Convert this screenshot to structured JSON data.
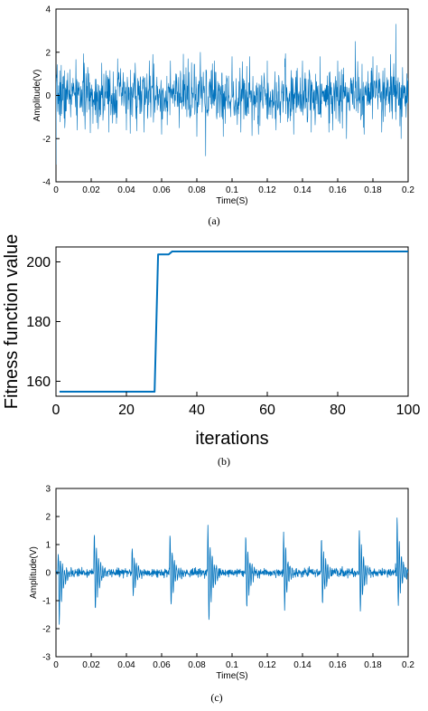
{
  "colors": {
    "line": "#0072bd",
    "axis": "#000000",
    "background": "#ffffff"
  },
  "chart_data": [
    {
      "panel": "a",
      "caption": "(a)",
      "type": "line",
      "xlabel": "Time(S)",
      "ylabel": "Amplitude(V)",
      "xlim": [
        0,
        0.2
      ],
      "ylim": [
        -4,
        4
      ],
      "xticks": [
        0,
        0.02,
        0.04,
        0.06,
        0.08,
        0.1,
        0.12,
        0.14,
        0.16,
        0.18,
        0.2
      ],
      "yticks": [
        -4,
        -2,
        0,
        2,
        4
      ],
      "grid": false,
      "signal": "dense broadband noise, approx. 2000 samples",
      "series": [
        {
          "x": [
            0,
            0.003,
            0.005,
            0.008,
            0.012,
            0.016,
            0.021,
            0.026,
            0.03,
            0.035,
            0.04,
            0.045,
            0.05,
            0.055,
            0.06,
            0.065,
            0.07,
            0.075,
            0.08,
            0.082,
            0.085,
            0.09,
            0.095,
            0.1,
            0.105,
            0.11,
            0.115,
            0.12,
            0.125,
            0.13,
            0.135,
            0.14,
            0.145,
            0.15,
            0.155,
            0.16,
            0.165,
            0.17,
            0.175,
            0.18,
            0.185,
            0.19,
            0.193,
            0.196,
            0.2
          ],
          "y": [
            -3.2,
            1.4,
            -1.5,
            1.2,
            -1.6,
            1.5,
            -1.3,
            1.5,
            -1.7,
            1.7,
            -1.6,
            1.5,
            -1.7,
            1.9,
            -1.8,
            1.6,
            -1.5,
            1.7,
            -1.9,
            2.0,
            -2.8,
            1.6,
            -1.9,
            1.8,
            -1.7,
            1.8,
            -1.8,
            1.6,
            -1.6,
            1.7,
            -1.8,
            1.6,
            -1.7,
            1.8,
            -1.7,
            1.6,
            -2.0,
            2.5,
            -1.8,
            1.8,
            -1.7,
            1.9,
            3.3,
            -2.0,
            0.8
          ]
        }
      ]
    },
    {
      "panel": "b",
      "caption": "(b)",
      "type": "line",
      "xlabel": "iterations",
      "ylabel": "Fitness function value",
      "xlim": [
        0,
        100
      ],
      "ylim": [
        155,
        205
      ],
      "xticks": [
        0,
        20,
        40,
        60,
        80,
        100
      ],
      "yticks": [
        160,
        180,
        200
      ],
      "grid": false,
      "series": [
        {
          "x": [
            1,
            28,
            29,
            32,
            33,
            100
          ],
          "y": [
            156.5,
            156.5,
            202.5,
            202.5,
            203.5,
            203.5
          ]
        }
      ]
    },
    {
      "panel": "c",
      "caption": "(c)",
      "type": "line",
      "xlabel": "Time(S)",
      "ylabel": "Amplitude(V)",
      "xlim": [
        0,
        0.2
      ],
      "ylim": [
        -3,
        3
      ],
      "xticks": [
        0,
        0.02,
        0.04,
        0.06,
        0.08,
        0.1,
        0.12,
        0.14,
        0.16,
        0.18,
        0.2
      ],
      "yticks": [
        -3,
        -2,
        -1,
        0,
        1,
        2,
        3
      ],
      "grid": false,
      "signal": "periodic impulses decaying into noise, period about 0.0215 s",
      "impulses": [
        {
          "t": 0.001,
          "peak": 0.8,
          "trough": -2.9
        },
        {
          "t": 0.0215,
          "peak": 1.6,
          "trough": -2.1
        },
        {
          "t": 0.043,
          "peak": 1.0,
          "trough": -1.2
        },
        {
          "t": 0.0645,
          "peak": 1.5,
          "trough": -1.9
        },
        {
          "t": 0.086,
          "peak": 1.9,
          "trough": -2.7
        },
        {
          "t": 0.1075,
          "peak": 1.5,
          "trough": -1.9
        },
        {
          "t": 0.129,
          "peak": 1.6,
          "trough": -1.9
        },
        {
          "t": 0.1505,
          "peak": 1.5,
          "trough": -1.7
        },
        {
          "t": 0.172,
          "peak": 1.8,
          "trough": -2.1
        },
        {
          "t": 0.1935,
          "peak": 2.2,
          "trough": -1.7
        }
      ],
      "series": [
        {
          "x": [
            0,
            0.001,
            0.01,
            0.0215,
            0.03,
            0.043,
            0.055,
            0.0645,
            0.075,
            0.086,
            0.095,
            0.1075,
            0.118,
            0.129,
            0.14,
            0.1505,
            0.16,
            0.172,
            0.182,
            0.1935,
            0.2
          ],
          "y": [
            0.4,
            -2.9,
            0.1,
            1.6,
            0.1,
            1.0,
            0.0,
            1.5,
            -0.1,
            1.9,
            0.0,
            1.5,
            0.1,
            1.6,
            0.0,
            1.5,
            0.0,
            1.8,
            0.1,
            2.2,
            0.1
          ]
        }
      ]
    }
  ]
}
